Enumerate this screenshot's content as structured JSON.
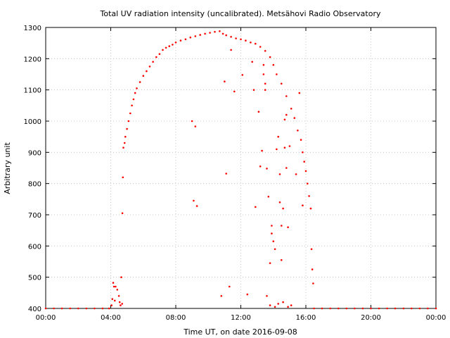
{
  "chart_data": {
    "type": "scatter",
    "title": "Total UV radiation intensity (uncalibrated). Metsähovi Radio Observatory",
    "xlabel": "Time UT, on date 2016-09-08",
    "ylabel": "Arbitrary unit",
    "xlim": [
      0,
      24
    ],
    "ylim": [
      400,
      1300
    ],
    "x_unit": "hours UT",
    "x_ticks": [
      {
        "value": 0,
        "label": "00:00"
      },
      {
        "value": 4,
        "label": "04:00"
      },
      {
        "value": 8,
        "label": "08:00"
      },
      {
        "value": 12,
        "label": "12:00"
      },
      {
        "value": 16,
        "label": "16:00"
      },
      {
        "value": 20,
        "label": "20:00"
      },
      {
        "value": 24,
        "label": "00:00"
      }
    ],
    "y_ticks": [
      400,
      500,
      600,
      700,
      800,
      900,
      1000,
      1100,
      1200,
      1300
    ],
    "grid": true,
    "grid_style": "dotted",
    "marker_color": "#ff0000",
    "series": [
      {
        "points": [
          [
            0.0,
            400
          ],
          [
            0.5,
            400
          ],
          [
            1.0,
            400
          ],
          [
            1.5,
            400
          ],
          [
            2.0,
            400
          ],
          [
            2.5,
            400
          ],
          [
            3.0,
            400
          ],
          [
            3.5,
            400
          ],
          [
            3.9,
            400
          ],
          [
            4.05,
            410
          ],
          [
            4.1,
            430
          ],
          [
            4.15,
            482
          ],
          [
            4.2,
            470
          ],
          [
            4.25,
            425
          ],
          [
            4.3,
            470
          ],
          [
            4.4,
            460
          ],
          [
            4.5,
            440
          ],
          [
            4.55,
            420
          ],
          [
            4.6,
            410
          ],
          [
            4.65,
            500
          ],
          [
            4.7,
            415
          ],
          [
            4.72,
            705
          ],
          [
            4.75,
            820
          ],
          [
            4.78,
            915
          ],
          [
            4.85,
            930
          ],
          [
            4.9,
            950
          ],
          [
            5.0,
            975
          ],
          [
            5.1,
            1000
          ],
          [
            5.2,
            1025
          ],
          [
            5.3,
            1050
          ],
          [
            5.4,
            1070
          ],
          [
            5.5,
            1090
          ],
          [
            5.6,
            1105
          ],
          [
            5.8,
            1125
          ],
          [
            6.0,
            1145
          ],
          [
            6.2,
            1160
          ],
          [
            6.4,
            1175
          ],
          [
            6.6,
            1190
          ],
          [
            6.8,
            1205
          ],
          [
            7.0,
            1215
          ],
          [
            7.2,
            1228
          ],
          [
            7.4,
            1235
          ],
          [
            7.6,
            1240
          ],
          [
            7.8,
            1245
          ],
          [
            8.0,
            1252
          ],
          [
            8.3,
            1258
          ],
          [
            8.6,
            1262
          ],
          [
            8.9,
            1268
          ],
          [
            9.2,
            1272
          ],
          [
            9.5,
            1276
          ],
          [
            9.8,
            1280
          ],
          [
            10.1,
            1283
          ],
          [
            10.4,
            1286
          ],
          [
            10.7,
            1288
          ],
          [
            10.9,
            1280
          ],
          [
            11.1,
            1275
          ],
          [
            11.4,
            1270
          ],
          [
            11.7,
            1265
          ],
          [
            12.0,
            1262
          ],
          [
            12.3,
            1258
          ],
          [
            12.6,
            1252
          ],
          [
            12.9,
            1248
          ],
          [
            13.2,
            1238
          ],
          [
            13.5,
            1225
          ],
          [
            13.8,
            1205
          ],
          [
            14.0,
            1180
          ],
          [
            14.2,
            1150
          ],
          [
            14.5,
            1120
          ],
          [
            14.8,
            1080
          ],
          [
            15.1,
            1040
          ],
          [
            15.3,
            1010
          ],
          [
            15.5,
            970
          ],
          [
            15.7,
            940
          ],
          [
            15.8,
            900
          ],
          [
            15.9,
            870
          ],
          [
            16.0,
            840
          ],
          [
            16.1,
            800
          ],
          [
            16.2,
            760
          ],
          [
            16.3,
            720
          ],
          [
            16.35,
            590
          ],
          [
            16.4,
            525
          ],
          [
            16.45,
            480
          ],
          [
            16.5,
            400
          ],
          [
            17.0,
            400
          ],
          [
            17.5,
            400
          ],
          [
            18.0,
            400
          ],
          [
            18.5,
            400
          ],
          [
            19.0,
            400
          ],
          [
            19.5,
            400
          ],
          [
            20.0,
            400
          ],
          [
            20.5,
            400
          ],
          [
            21.0,
            400
          ],
          [
            21.5,
            400
          ],
          [
            22.0,
            400
          ],
          [
            22.5,
            400
          ],
          [
            23.0,
            400
          ],
          [
            23.5,
            400
          ],
          [
            24.0,
            400
          ],
          [
            9.0,
            1000
          ],
          [
            9.2,
            983
          ],
          [
            9.1,
            745
          ],
          [
            9.3,
            728
          ],
          [
            10.8,
            440
          ],
          [
            11.0,
            1127
          ],
          [
            11.1,
            832
          ],
          [
            11.3,
            470
          ],
          [
            11.4,
            1228
          ],
          [
            11.6,
            1095
          ],
          [
            12.1,
            1148
          ],
          [
            12.4,
            445
          ],
          [
            12.7,
            1190
          ],
          [
            12.8,
            1100
          ],
          [
            12.9,
            725
          ],
          [
            13.1,
            1030
          ],
          [
            13.2,
            855
          ],
          [
            13.3,
            905
          ],
          [
            13.4,
            1180
          ],
          [
            13.4,
            1150
          ],
          [
            13.5,
            1120
          ],
          [
            13.5,
            1100
          ],
          [
            13.6,
            848
          ],
          [
            13.7,
            758
          ],
          [
            13.8,
            545
          ],
          [
            13.9,
            665
          ],
          [
            13.9,
            640
          ],
          [
            14.0,
            615
          ],
          [
            14.1,
            590
          ],
          [
            14.2,
            910
          ],
          [
            14.3,
            950
          ],
          [
            14.4,
            830
          ],
          [
            14.4,
            740
          ],
          [
            14.5,
            665
          ],
          [
            14.5,
            555
          ],
          [
            14.6,
            720
          ],
          [
            14.7,
            1005
          ],
          [
            14.7,
            915
          ],
          [
            14.8,
            1020
          ],
          [
            14.8,
            850
          ],
          [
            14.9,
            660
          ],
          [
            15.0,
            920
          ],
          [
            15.4,
            830
          ],
          [
            15.6,
            1090
          ],
          [
            15.8,
            730
          ],
          [
            13.6,
            440
          ],
          [
            13.8,
            410
          ],
          [
            14.1,
            405
          ],
          [
            14.3,
            415
          ],
          [
            14.6,
            420
          ],
          [
            14.9,
            405
          ],
          [
            15.1,
            410
          ]
        ]
      }
    ]
  }
}
